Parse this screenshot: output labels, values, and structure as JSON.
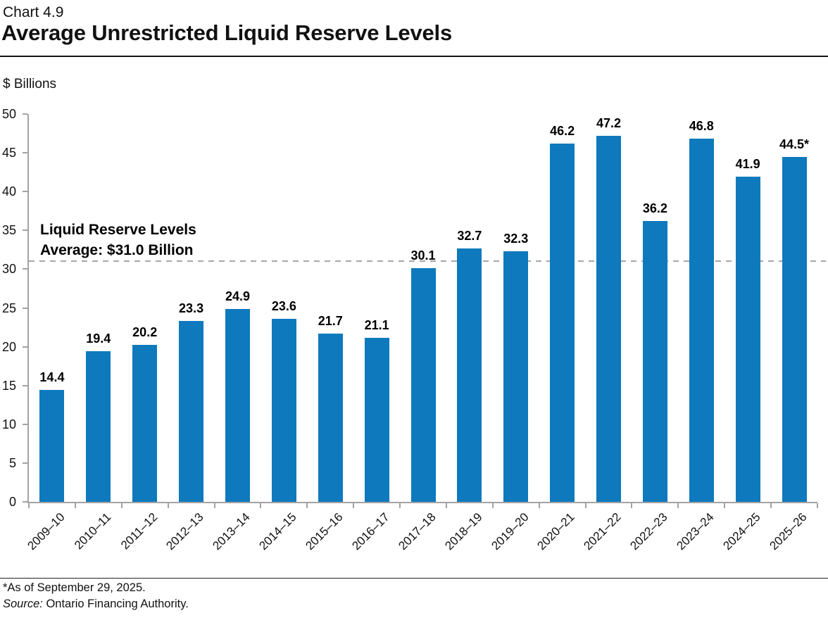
{
  "header": {
    "chart_number": "Chart 4.9",
    "title": "Average Unrestricted Liquid Reserve Levels"
  },
  "chart_data": {
    "type": "bar",
    "title": "Average Unrestricted Liquid Reserve Levels",
    "unit_label": "$ Billions",
    "categories": [
      "2009–10",
      "2010–11",
      "2011–12",
      "2012–13",
      "2013–14",
      "2014–15",
      "2015–16",
      "2016–17",
      "2017–18",
      "2018–19",
      "2019–20",
      "2020–21",
      "2021–22",
      "2022–23",
      "2023–24",
      "2024–25",
      "2025–26"
    ],
    "values": [
      14.4,
      19.4,
      20.2,
      23.3,
      24.9,
      23.6,
      21.7,
      21.1,
      30.1,
      32.7,
      32.3,
      46.2,
      47.2,
      36.2,
      46.8,
      41.9,
      44.5
    ],
    "value_labels": [
      "14.4",
      "19.4",
      "20.2",
      "23.3",
      "24.9",
      "23.6",
      "21.7",
      "21.1",
      "30.1",
      "32.7",
      "32.3",
      "46.2",
      "47.2",
      "36.2",
      "46.8",
      "41.9",
      "44.5*"
    ],
    "ylim": [
      0,
      50
    ],
    "ytick_step": 5,
    "grid": "off",
    "legend_position": "none",
    "bar_color": "#0e79bc",
    "axis_color": "#a3a3a3",
    "average_line": {
      "value": 31.0,
      "color": "#a6a6a6",
      "style": "dashed",
      "annotation_line1": "Liquid Reserve Levels",
      "annotation_line2": "Average: $31.0 Billion"
    }
  },
  "footer": {
    "note": "*As of September 29, 2025.",
    "source_label": "Source:",
    "source_name": " Ontario Financing Authority."
  }
}
